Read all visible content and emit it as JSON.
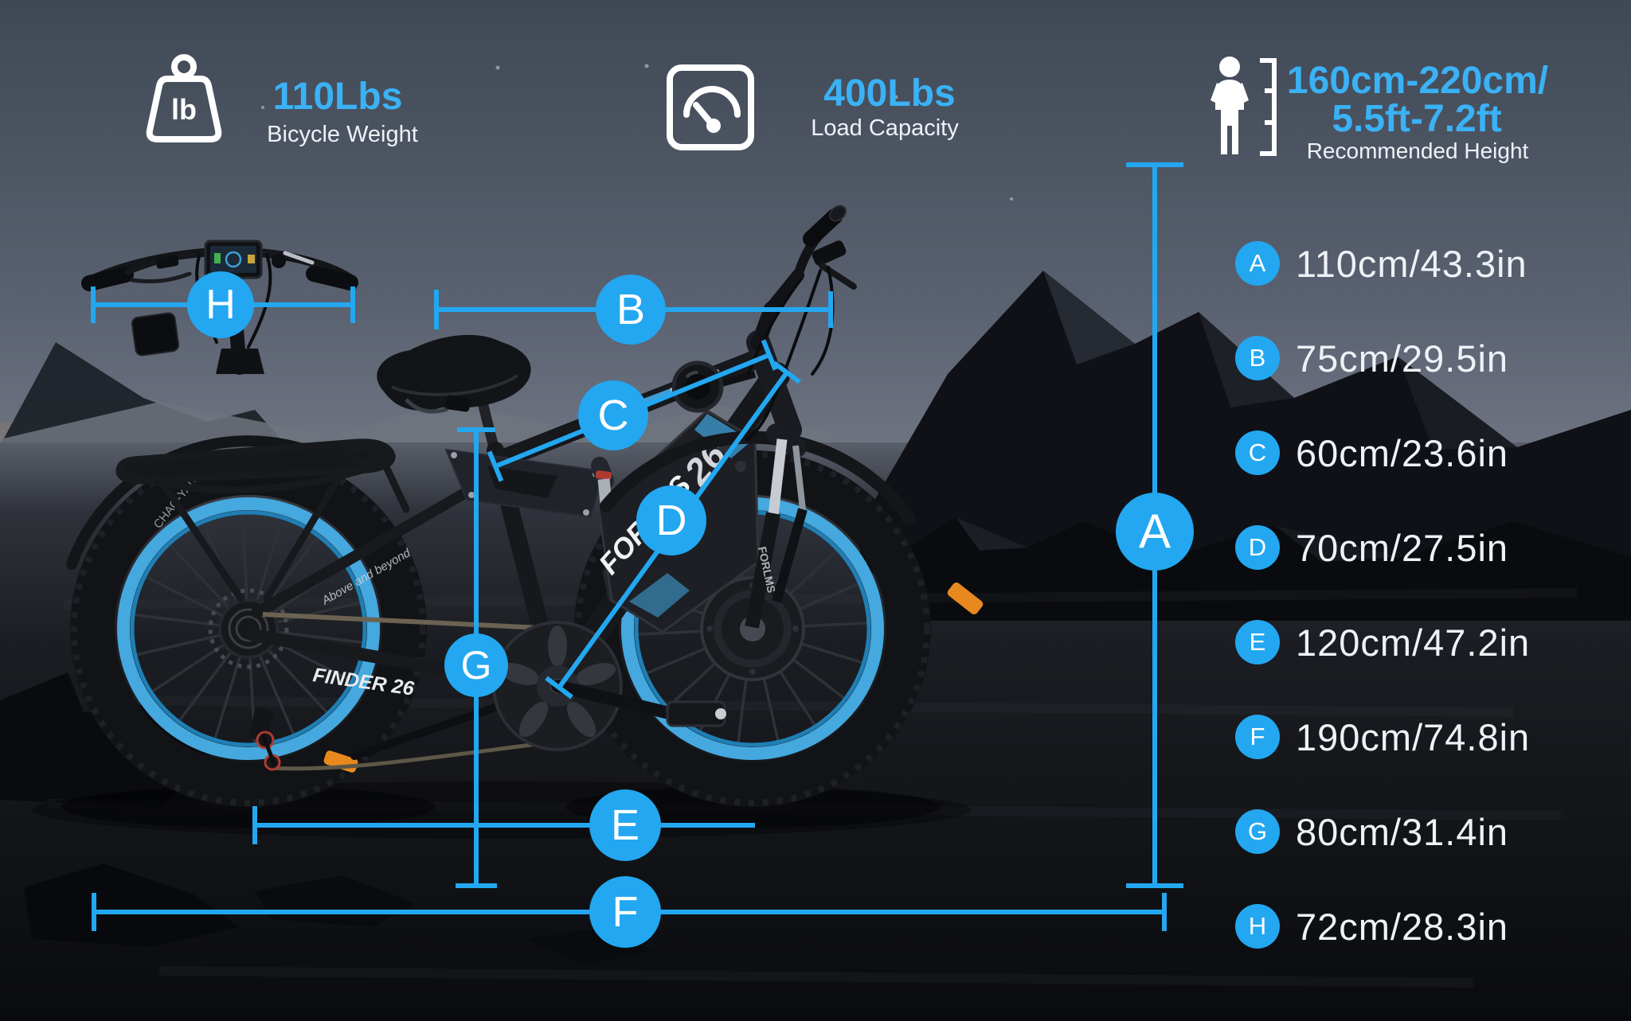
{
  "header": {
    "bicycle_weight": {
      "icon_text": "lb",
      "value": "110Lbs",
      "label": "Bicycle Weight"
    },
    "load_capacity": {
      "value": "400Lbs",
      "label": "Load Capacity"
    },
    "recommended_height": {
      "value_line1": "160cm-220cm/",
      "value_line2": "5.5ft-7.2ft",
      "label": "Recommended Height"
    }
  },
  "measurements": [
    {
      "letter": "A",
      "value": "110cm/43.3in"
    },
    {
      "letter": "B",
      "value": "75cm/29.5in"
    },
    {
      "letter": "C",
      "value": "60cm/23.6in"
    },
    {
      "letter": "D",
      "value": "70cm/27.5in"
    },
    {
      "letter": "E",
      "value": "120cm/47.2in"
    },
    {
      "letter": "F",
      "value": "190cm/74.8in"
    },
    {
      "letter": "G",
      "value": "80cm/31.4in"
    },
    {
      "letter": "H",
      "value": "72cm/28.3in"
    }
  ],
  "bike_labels": {
    "battery_number": "26",
    "battery_brand": "FORLMS",
    "fork_brand": "FORLMS",
    "chainstay_model": "FINDER 26",
    "seatstay_slogan": "Above and beyond",
    "tire_brand": "CHAO-YANG"
  },
  "colors": {
    "accent_blue": "#23a7f1",
    "value_text_blue": "#3ab2f5",
    "text_white": "#eef2f6",
    "rim_blue": "#45a8de",
    "reflector_orange": "#e8891f"
  }
}
